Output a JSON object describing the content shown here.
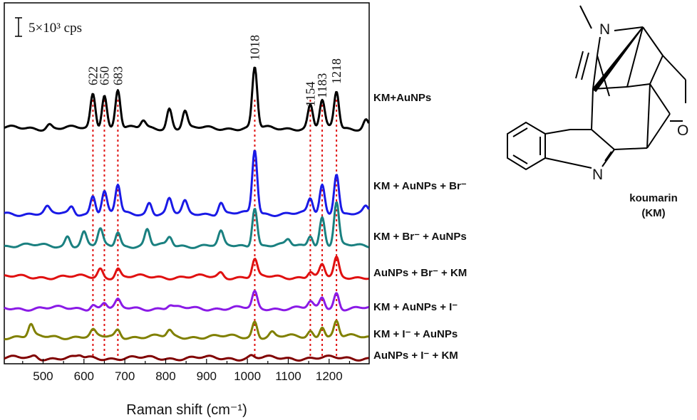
{
  "chart_data": {
    "type": "line",
    "xlabel": "Raman shift (cm⁻¹)",
    "xlim": [
      405,
      1298
    ],
    "x_ticks": [
      "500",
      "600",
      "700",
      "800",
      "900",
      "1000",
      "1100",
      "1200"
    ],
    "scale_bar_label": "5×10³ cps",
    "peak_labels": [
      "622",
      "650",
      "683",
      "1018",
      "1154",
      "1183",
      "1218"
    ],
    "peak_positions": [
      622,
      650,
      683,
      1018,
      1154,
      1183,
      1218
    ],
    "grid": false,
    "series": [
      {
        "name": "KM+AuNPs",
        "color": "#000000",
        "baseline": 180,
        "peaks": [
          [
            622,
            48
          ],
          [
            650,
            48
          ],
          [
            683,
            55
          ],
          [
            809,
            28
          ],
          [
            847,
            24
          ],
          [
            1018,
            85
          ],
          [
            1154,
            32
          ],
          [
            1183,
            38
          ],
          [
            1218,
            52
          ],
          [
            515,
            6
          ],
          [
            745,
            10
          ],
          [
            1290,
            12
          ]
        ]
      },
      {
        "name": "KM + AuNPs + Br⁻",
        "color": "#1a1ae6",
        "baseline": 300,
        "peaks": [
          [
            622,
            26
          ],
          [
            650,
            30
          ],
          [
            683,
            40
          ],
          [
            760,
            16
          ],
          [
            809,
            20
          ],
          [
            847,
            16
          ],
          [
            935,
            16
          ],
          [
            1018,
            90
          ],
          [
            1154,
            20
          ],
          [
            1183,
            40
          ],
          [
            1218,
            58
          ],
          [
            510,
            8
          ],
          [
            570,
            10
          ],
          [
            1290,
            8
          ]
        ]
      },
      {
        "name": "KM + Br⁻ + AuNPs",
        "color": "#1a8080",
        "baseline": 345,
        "peaks": [
          [
            560,
            14
          ],
          [
            600,
            18
          ],
          [
            640,
            22
          ],
          [
            683,
            20
          ],
          [
            755,
            22
          ],
          [
            810,
            12
          ],
          [
            935,
            18
          ],
          [
            1018,
            55
          ],
          [
            1154,
            16
          ],
          [
            1183,
            40
          ],
          [
            1218,
            60
          ],
          [
            1100,
            8
          ]
        ]
      },
      {
        "name": "AuNPs + Br⁻ + KM",
        "color": "#e01010",
        "baseline": 389,
        "peaks": [
          [
            640,
            12
          ],
          [
            683,
            12
          ],
          [
            1018,
            24
          ],
          [
            1154,
            8
          ],
          [
            1183,
            16
          ],
          [
            1218,
            26
          ],
          [
            935,
            6
          ]
        ]
      },
      {
        "name": "KM + AuNPs + I⁻",
        "color": "#8a1ae6",
        "baseline": 433,
        "peaks": [
          [
            622,
            6
          ],
          [
            650,
            8
          ],
          [
            683,
            10
          ],
          [
            1018,
            22
          ],
          [
            1154,
            8
          ],
          [
            1183,
            16
          ],
          [
            1218,
            22
          ],
          [
            810,
            4
          ]
        ]
      },
      {
        "name": "KM + I⁻ + AuNPs",
        "color": "#808000",
        "baseline": 473,
        "peaks": [
          [
            470,
            16
          ],
          [
            622,
            8
          ],
          [
            683,
            10
          ],
          [
            809,
            8
          ],
          [
            1018,
            22
          ],
          [
            1060,
            6
          ],
          [
            1154,
            8
          ],
          [
            1183,
            16
          ],
          [
            1218,
            22
          ]
        ]
      },
      {
        "name": "AuNPs + I⁻ + KM",
        "color": "#800000",
        "baseline": 503,
        "peaks": [
          [
            480,
            3
          ],
          [
            590,
            3
          ],
          [
            1010,
            3
          ]
        ]
      }
    ]
  },
  "molecule": {
    "name": "koumarin",
    "abbr": "(KM)",
    "atoms": [
      "N",
      "N",
      "O"
    ]
  }
}
